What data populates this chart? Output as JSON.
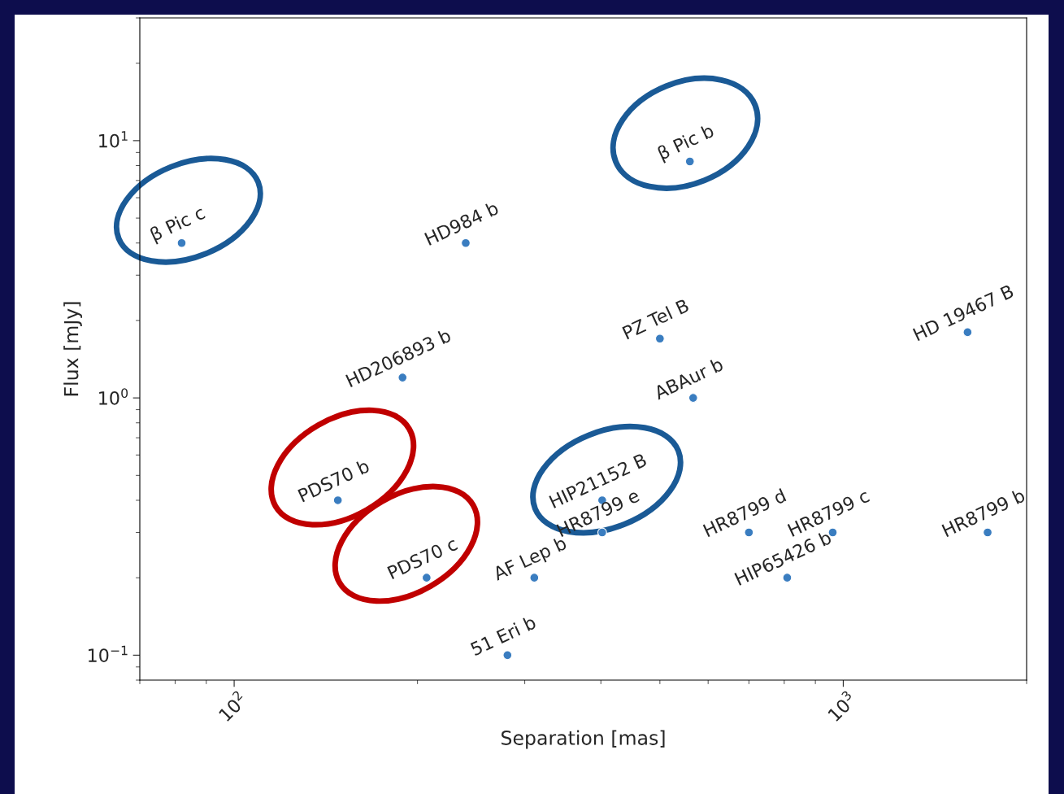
{
  "chart_data": {
    "type": "scatter",
    "xlabel": "Separation [mas]",
    "ylabel": "Flux [mJy]",
    "log": "xy",
    "marker": "circle",
    "xlim": [
      70,
      2000
    ],
    "ylim": [
      0.08,
      30
    ],
    "xticks": [
      {
        "value": 100,
        "label": "10$^{2}$"
      },
      {
        "value": 1000,
        "label": "10$^{3}$"
      }
    ],
    "yticks": [
      {
        "value": 0.1,
        "label": "10$^{−1}$"
      },
      {
        "value": 1,
        "label": "10$^{0}$"
      },
      {
        "value": 10,
        "label": "10$^{1}$"
      }
    ],
    "series": [
      {
        "color": "#3a7dc0",
        "x": [
          82,
          240,
          560,
          189,
          500,
          567,
          1600,
          148,
          207,
          311,
          281,
          402,
          402,
          700,
          809,
          961,
          1726
        ],
        "values": [
          4.0,
          4.0,
          8.3,
          1.2,
          1.7,
          1.0,
          1.8,
          0.4,
          0.2,
          0.2,
          0.1,
          0.4,
          0.3,
          0.3,
          0.2,
          0.3,
          0.3
        ]
      }
    ],
    "annotations": [
      {
        "text": "β Pic c",
        "x": 82,
        "y": 4.0
      },
      {
        "text": "HD984 b",
        "x": 240,
        "y": 4.0
      },
      {
        "text": "β Pic b",
        "x": 560,
        "y": 8.3
      },
      {
        "text": "HD206893 b",
        "x": 189,
        "y": 1.2
      },
      {
        "text": "PZ Tel B",
        "x": 500,
        "y": 1.7
      },
      {
        "text": "ABAur b",
        "x": 567,
        "y": 1.0
      },
      {
        "text": "HD 19467 B",
        "x": 1600,
        "y": 1.8
      },
      {
        "text": "PDS70 b",
        "x": 148,
        "y": 0.4
      },
      {
        "text": "PDS70 c",
        "x": 207,
        "y": 0.2
      },
      {
        "text": "AF Lep b",
        "x": 311,
        "y": 0.2
      },
      {
        "text": "51 Eri b",
        "x": 281,
        "y": 0.1
      },
      {
        "text": "HIP21152 B",
        "x": 402,
        "y": 0.4
      },
      {
        "text": "HR8799 e",
        "x": 402,
        "y": 0.3
      },
      {
        "text": "HR8799 d",
        "x": 700,
        "y": 0.3
      },
      {
        "text": "HIP65426 b",
        "x": 809,
        "y": 0.2
      },
      {
        "text": "HR8799 c",
        "x": 961,
        "y": 0.3
      },
      {
        "text": "HR8799 b",
        "x": 1726,
        "y": 0.3
      }
    ]
  }
}
